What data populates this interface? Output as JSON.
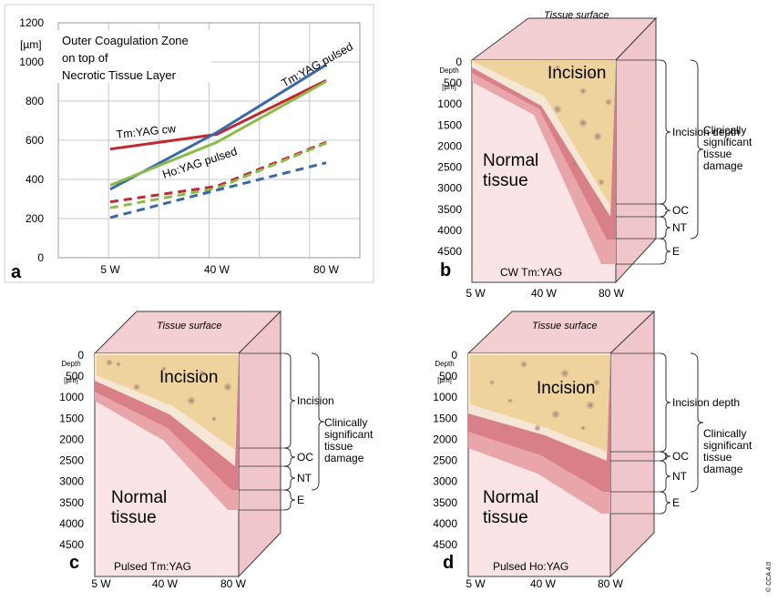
{
  "copyright": "© CCA 4.0",
  "panel_a": {
    "letter": "a",
    "title_lines": [
      "Outer Coagulation Zone",
      "on top of",
      "Necrotic Tissue Layer"
    ],
    "y_unit": "[µm]",
    "y_ticks": [
      "1200",
      "1000",
      "800",
      "600",
      "400",
      "200",
      "0"
    ],
    "x_ticks": [
      "5 W",
      "40 W",
      "80 W"
    ],
    "labels": {
      "tm_cw": "Tm:YAG cw",
      "tm_pulsed": "Tm:YAG pulsed",
      "ho_pulsed": "Ho:YAG pulsed"
    }
  },
  "chart_data": {
    "type": "line",
    "x": [
      "5 W",
      "40 W",
      "80 W"
    ],
    "ylim": [
      0,
      1200
    ],
    "ylabel": "[µm]",
    "grid": true,
    "series": [
      {
        "name": "Tm:YAG cw",
        "color": "#c0282d",
        "style": "solid",
        "values": [
          555,
          630,
          905
        ]
      },
      {
        "name": "Tm:YAG pulsed",
        "color": "#3a68a8",
        "style": "solid",
        "values": [
          350,
          640,
          985
        ]
      },
      {
        "name": "Ho:YAG pulsed",
        "color": "#8dbb4a",
        "style": "solid",
        "values": [
          370,
          590,
          900
        ]
      },
      {
        "color": "#c0282d",
        "style": "dashed",
        "values": [
          285,
          365,
          590
        ]
      },
      {
        "color": "#8dbb4a",
        "style": "dashed",
        "values": [
          255,
          355,
          585
        ]
      },
      {
        "color": "#3a68a8",
        "style": "dashed",
        "values": [
          205,
          345,
          485
        ]
      }
    ]
  },
  "common": {
    "tissue_surface": "Tissue surface",
    "depth_label": "Depth",
    "depth_unit": "[µm]",
    "depth_ticks": [
      "0",
      "500",
      "1000",
      "1500",
      "2000",
      "2500",
      "3000",
      "3500",
      "4000",
      "4500"
    ],
    "x_ticks": [
      "5 W",
      "40 W",
      "80 W"
    ],
    "incision": "Incision",
    "normal_tissue": [
      "Normal",
      "tissue"
    ],
    "clinically": [
      "Clinically",
      "significant",
      "tissue",
      "damage"
    ],
    "oc": "OC",
    "nt": "NT",
    "e": "E"
  },
  "panel_b": {
    "letter": "b",
    "caption": "CW Tm:YAG",
    "incision_label": "Incision depth"
  },
  "panel_c": {
    "letter": "c",
    "caption": "Pulsed Tm:YAG",
    "incision_label": "Incision"
  },
  "panel_d": {
    "letter": "d",
    "caption": "Pulsed Ho:YAG",
    "incision_label": "Incision depth"
  }
}
